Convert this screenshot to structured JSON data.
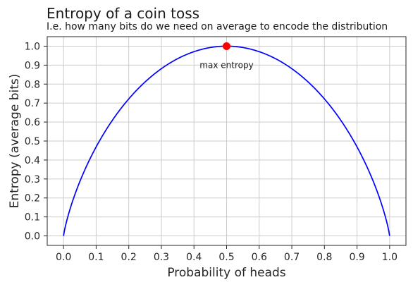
{
  "chart_data": {
    "type": "line",
    "title": "Entropy of a coin toss",
    "subtitle": "I.e. how many bits do we need on average to encode the distribution",
    "xlabel": "Probability of heads",
    "ylabel": "Entropy (average bits)",
    "xlim": [
      -0.05,
      1.05
    ],
    "ylim": [
      -0.05,
      1.05
    ],
    "x_ticks": [
      "0.0",
      "0.1",
      "0.2",
      "0.3",
      "0.4",
      "0.5",
      "0.6",
      "0.7",
      "0.8",
      "0.9",
      "1.0"
    ],
    "y_ticks": [
      "0.0",
      "0.1",
      "0.2",
      "0.3",
      "0.4",
      "0.5",
      "0.6",
      "0.7",
      "0.8",
      "0.9",
      "1.0"
    ],
    "grid": true,
    "series": [
      {
        "color": "#0000ff",
        "x": [
          0.0,
          0.01,
          0.02,
          0.05,
          0.1,
          0.15,
          0.2,
          0.25,
          0.3,
          0.35,
          0.4,
          0.45,
          0.5,
          0.55,
          0.6,
          0.65,
          0.7,
          0.75,
          0.8,
          0.85,
          0.9,
          0.95,
          0.98,
          0.99,
          1.0
        ],
        "values": [
          0.0,
          0.081,
          0.141,
          0.286,
          0.469,
          0.61,
          0.722,
          0.811,
          0.881,
          0.934,
          0.971,
          0.993,
          1.0,
          0.993,
          0.971,
          0.934,
          0.881,
          0.811,
          0.722,
          0.61,
          0.469,
          0.286,
          0.141,
          0.081,
          0.0
        ]
      }
    ],
    "highlight_point": {
      "x": 0.5,
      "y": 1.0,
      "color": "#ff0000"
    },
    "annotations": [
      {
        "text": "max entropy",
        "x": 0.5,
        "y": 0.9
      }
    ]
  }
}
